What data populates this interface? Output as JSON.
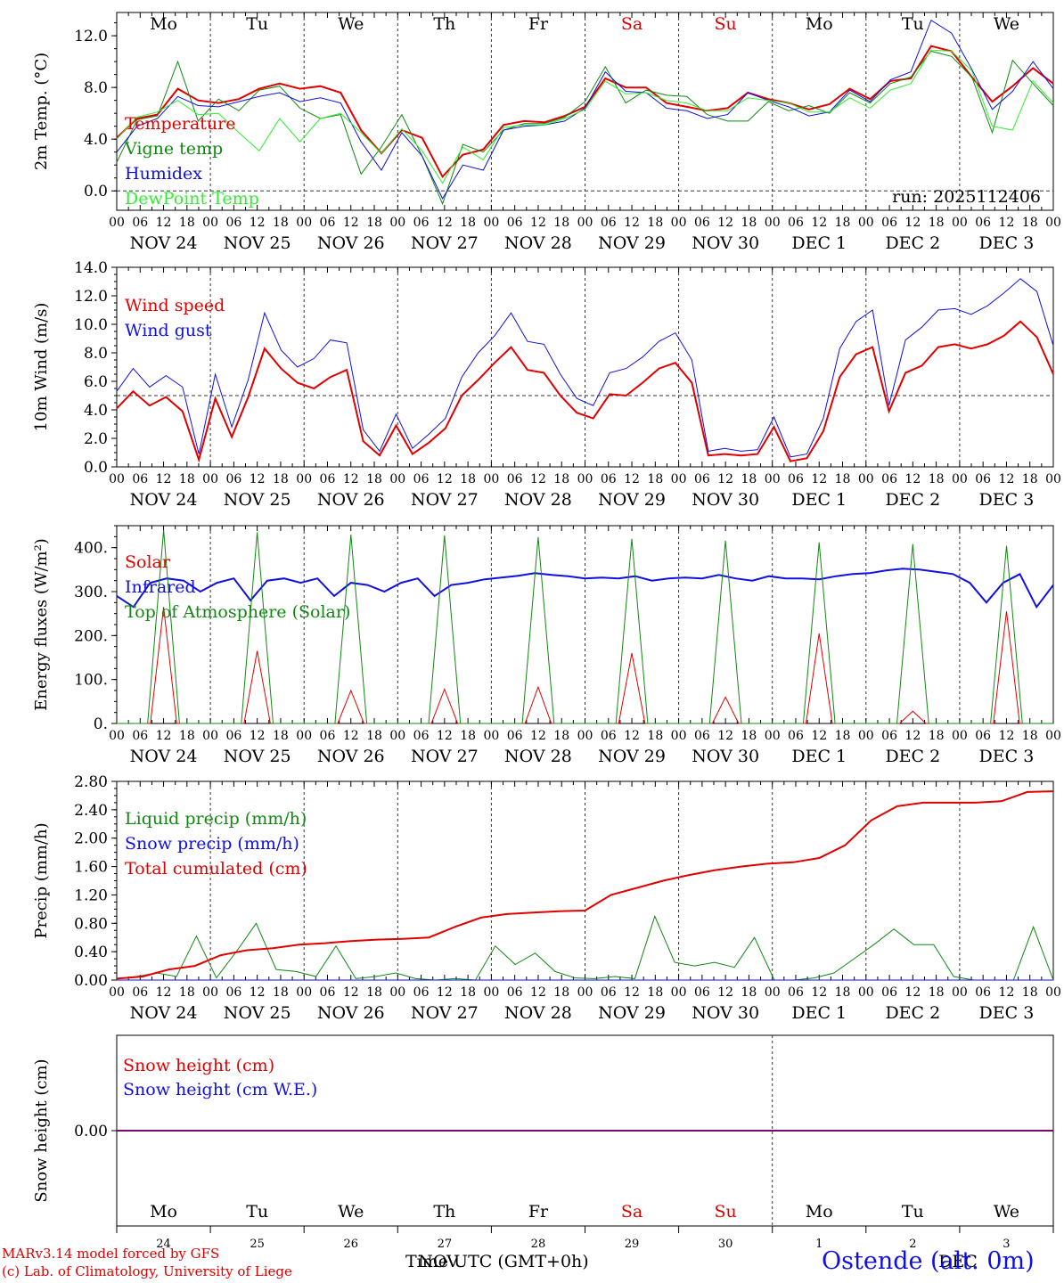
{
  "chart_data": {
    "type": "line",
    "run_label": "run: 2025112406",
    "station": "Ostende (alt. 0m)",
    "credits": [
      "MARv3.14 model forced by GFS",
      "(c) Lab. of Climatology, University of Liege"
    ],
    "xlabel": "Time UTC (GMT+0h)",
    "hour_labels": [
      "00",
      "06",
      "12",
      "18"
    ],
    "hour_end_label": "00",
    "date_labels": [
      "NOV 24",
      "NOV 25",
      "NOV 26",
      "NOV 27",
      "NOV 28",
      "NOV 29",
      "NOV 30",
      "DEC 1",
      "DEC 2",
      "DEC 3"
    ],
    "weekdays": [
      {
        "label": "Mo",
        "color": "#000000"
      },
      {
        "label": "Tu",
        "color": "#000000"
      },
      {
        "label": "We",
        "color": "#000000"
      },
      {
        "label": "Th",
        "color": "#000000"
      },
      {
        "label": "Fr",
        "color": "#000000"
      },
      {
        "label": "Sa",
        "color": "#e00000"
      },
      {
        "label": "Su",
        "color": "#e00000"
      },
      {
        "label": "Mo",
        "color": "#000000"
      },
      {
        "label": "Tu",
        "color": "#000000"
      },
      {
        "label": "We",
        "color": "#000000"
      }
    ],
    "day_numbers": [
      "24",
      "25",
      "26",
      "27",
      "28",
      "29",
      "30",
      "1",
      "2",
      "3"
    ],
    "bottom_month_label": "DEC",
    "bottom_month_label_2": "NOV",
    "panels": [
      {
        "id": "temp",
        "ylabel": "2m Temp. (°C)",
        "ylim": [
          -1.5,
          13.8
        ],
        "ticks": [
          0,
          4,
          8,
          12
        ],
        "tick_labels": [
          "0.0",
          "4.0",
          "8.0",
          "12.0"
        ],
        "ref_line": 0,
        "series": [
          {
            "name": "Temperature",
            "color": "#e00000",
            "values": [
              4.1,
              5.6,
              5.9,
              7.9,
              7.0,
              6.8,
              7.1,
              7.9,
              8.3,
              7.9,
              8.1,
              7.6,
              4.7,
              2.9,
              4.7,
              4.1,
              1.1,
              2.8,
              3.2,
              5.1,
              5.4,
              5.3,
              5.8,
              6.5,
              8.7,
              8.0,
              8.0,
              6.8,
              6.5,
              6.2,
              6.4,
              7.6,
              7.1,
              6.8,
              6.3,
              6.7,
              7.9,
              7.1,
              8.5,
              8.7,
              11.2,
              10.8,
              8.8,
              6.9,
              8.1,
              9.5,
              8.3
            ]
          },
          {
            "name": "Vigne temp",
            "color": "#118811",
            "values": [
              2.2,
              5.5,
              5.8,
              10.0,
              5.4,
              7.1,
              6.2,
              7.8,
              8.1,
              6.4,
              5.6,
              5.9,
              1.3,
              3.4,
              5.9,
              2.7,
              -1.0,
              3.6,
              3.0,
              4.7,
              5.2,
              5.2,
              5.7,
              6.9,
              9.6,
              6.8,
              7.8,
              7.4,
              7.3,
              5.9,
              5.4,
              5.4,
              6.9,
              6.2,
              6.6,
              6.0,
              7.6,
              6.8,
              8.3,
              8.8,
              10.8,
              10.4,
              8.8,
              4.5,
              10.1,
              8.3,
              6.6
            ]
          },
          {
            "name": "Humidex",
            "color": "#1010e0",
            "values": [
              3.0,
              5.0,
              5.6,
              7.3,
              6.6,
              6.5,
              6.9,
              7.3,
              7.6,
              6.9,
              7.2,
              6.8,
              3.8,
              1.6,
              4.5,
              2.7,
              -0.6,
              2.0,
              1.6,
              4.7,
              5.0,
              5.1,
              5.4,
              6.4,
              9.2,
              7.7,
              7.6,
              6.4,
              6.2,
              5.6,
              5.9,
              7.6,
              7.0,
              6.5,
              5.8,
              6.1,
              7.8,
              6.9,
              8.6,
              9.2,
              13.2,
              12.2,
              9.4,
              6.3,
              7.7,
              10.0,
              7.9
            ]
          },
          {
            "name": "DewPoint Temp",
            "color": "#30ee30",
            "values": [
              4.0,
              5.7,
              6.1,
              7.0,
              5.9,
              6.0,
              4.5,
              3.1,
              5.6,
              3.8,
              5.6,
              6.0,
              4.5,
              2.9,
              4.8,
              3.1,
              0.6,
              3.4,
              2.4,
              4.9,
              5.1,
              5.1,
              5.6,
              6.3,
              8.5,
              7.5,
              7.6,
              7.0,
              6.8,
              6.2,
              6.2,
              7.2,
              7.0,
              6.8,
              6.1,
              6.1,
              7.2,
              6.4,
              7.8,
              8.3,
              10.9,
              10.8,
              9.3,
              5.0,
              4.7,
              8.5,
              6.8
            ]
          }
        ]
      },
      {
        "id": "wind",
        "ylabel": "10m Wind (m/s)",
        "ylim": [
          0,
          14
        ],
        "ticks": [
          0,
          2,
          4,
          6,
          8,
          10,
          12,
          14
        ],
        "tick_labels": [
          "0.0",
          "2.0",
          "4.0",
          "6.0",
          "8.0",
          "10.0",
          "12.0",
          "14.0"
        ],
        "ref_line": 5,
        "series": [
          {
            "name": "Wind speed",
            "color": "#e00000",
            "values": [
              4.1,
              5.3,
              4.3,
              4.9,
              3.9,
              0.5,
              4.8,
              2.1,
              4.9,
              8.3,
              6.9,
              5.9,
              5.5,
              6.3,
              6.8,
              1.8,
              0.8,
              2.9,
              0.9,
              1.7,
              2.7,
              5.0,
              6.1,
              7.3,
              8.4,
              6.8,
              6.6,
              5.0,
              3.8,
              3.4,
              5.1,
              5.0,
              5.9,
              6.9,
              7.3,
              5.9,
              0.8,
              0.9,
              0.8,
              0.9,
              2.8,
              0.4,
              0.6,
              2.5,
              6.3,
              7.9,
              8.4,
              3.9,
              6.6,
              7.1,
              8.4,
              8.6,
              8.3,
              8.6,
              9.2,
              10.2,
              9.1,
              6.5
            ]
          },
          {
            "name": "Wind gust",
            "color": "#1010e0",
            "values": [
              5.3,
              6.9,
              5.6,
              6.4,
              5.6,
              0.9,
              6.5,
              2.8,
              6.1,
              10.8,
              8.2,
              7.0,
              7.6,
              8.9,
              8.7,
              2.6,
              1.1,
              3.7,
              1.3,
              2.3,
              3.4,
              6.3,
              8.0,
              9.2,
              10.8,
              8.8,
              8.6,
              6.5,
              4.8,
              4.3,
              6.6,
              6.9,
              7.7,
              8.8,
              9.4,
              7.5,
              1.1,
              1.3,
              1.1,
              1.2,
              3.5,
              0.7,
              0.9,
              3.4,
              8.3,
              10.2,
              11.0,
              4.3,
              8.9,
              9.8,
              11.0,
              11.1,
              10.7,
              11.3,
              12.2,
              13.2,
              12.3,
              8.5
            ]
          }
        ]
      },
      {
        "id": "energy",
        "ylabel": "Energy fluxes (W/m²)",
        "ylim": [
          0,
          450
        ],
        "ticks": [
          0,
          100,
          200,
          300,
          400
        ],
        "tick_labels": [
          "0.",
          "100.",
          "200.",
          "300.",
          "400."
        ],
        "series": [
          {
            "name": "Solar",
            "color": "#e00000",
            "day_peaks": [
              265,
              165,
              75,
              78,
              83,
              160,
              60,
              205,
              28,
              255
            ]
          },
          {
            "name": "Infrared",
            "color": "#1010e0",
            "values": [
              290,
              265,
              320,
              330,
              325,
              300,
              320,
              330,
              280,
              325,
              330,
              320,
              330,
              290,
              320,
              315,
              300,
              320,
              330,
              290,
              315,
              320,
              328,
              332,
              336,
              342,
              338,
              335,
              330,
              332,
              330,
              335,
              325,
              330,
              332,
              330,
              338,
              330,
              325,
              335,
              330,
              330,
              328,
              335,
              340,
              342,
              348,
              352,
              350,
              345,
              340,
              320,
              275,
              320,
              340,
              265,
              315
            ]
          },
          {
            "name": "Top of Atmosphere (Solar)",
            "color": "#118811",
            "day_peaks": [
              440,
              435,
              430,
              428,
              424,
              420,
              416,
              412,
              408,
              404
            ]
          }
        ]
      },
      {
        "id": "precip",
        "ylabel": "Precip (mm/h)",
        "ylim": [
          0,
          2.8
        ],
        "ticks": [
          0,
          0.4,
          0.8,
          1.2,
          1.6,
          2.0,
          2.4,
          2.8
        ],
        "tick_labels": [
          "0.00",
          "0.40",
          "0.80",
          "1.20",
          "1.60",
          "2.00",
          "2.40",
          "2.80"
        ],
        "series": [
          {
            "name": "Liquid precip (mm/h)",
            "color": "#118811",
            "values": [
              0.02,
              0.05,
              0.1,
              0.05,
              0.62,
              0.03,
              0.4,
              0.8,
              0.15,
              0.12,
              0.05,
              0.48,
              0.02,
              0.05,
              0.1,
              0.02,
              0.0,
              0.02,
              0.0,
              0.48,
              0.22,
              0.38,
              0.12,
              0.03,
              0.02,
              0.05,
              0.02,
              0.9,
              0.25,
              0.2,
              0.25,
              0.18,
              0.6,
              0.0,
              0.0,
              0.03,
              0.1,
              0.3,
              0.5,
              0.72,
              0.5,
              0.5,
              0.05,
              0.0,
              0.0,
              0.0,
              0.75,
              0.0
            ]
          },
          {
            "name": "Snow precip (mm/h)",
            "color": "#1010e0",
            "values": [
              0,
              0,
              0,
              0,
              0,
              0,
              0,
              0,
              0,
              0,
              0,
              0,
              0,
              0,
              0,
              0,
              0,
              0,
              0,
              0,
              0,
              0,
              0,
              0,
              0,
              0,
              0,
              0,
              0,
              0,
              0,
              0,
              0,
              0,
              0,
              0,
              0,
              0,
              0,
              0,
              0,
              0,
              0,
              0,
              0,
              0,
              0,
              0
            ]
          },
          {
            "name": "Total cumulated (cm)",
            "color": "#e00000",
            "values": [
              0.02,
              0.05,
              0.15,
              0.2,
              0.35,
              0.42,
              0.45,
              0.5,
              0.52,
              0.55,
              0.57,
              0.58,
              0.6,
              0.75,
              0.88,
              0.93,
              0.95,
              0.97,
              0.98,
              1.2,
              1.3,
              1.4,
              1.48,
              1.55,
              1.6,
              1.64,
              1.66,
              1.72,
              1.9,
              2.25,
              2.45,
              2.5,
              2.5,
              2.5,
              2.52,
              2.65,
              2.66
            ]
          }
        ]
      },
      {
        "id": "snow",
        "ylabel": "Snow height (cm)",
        "ylim": [
          -1,
          1
        ],
        "ticks": [
          0
        ],
        "tick_labels": [
          "0.00"
        ],
        "series": [
          {
            "name": "Snow height (cm)",
            "color": "#e00000",
            "values": [
              0,
              0
            ]
          },
          {
            "name": "Snow height (cm W.E.)",
            "color": "#1010e0",
            "values": [
              0,
              0
            ]
          }
        ]
      }
    ]
  }
}
